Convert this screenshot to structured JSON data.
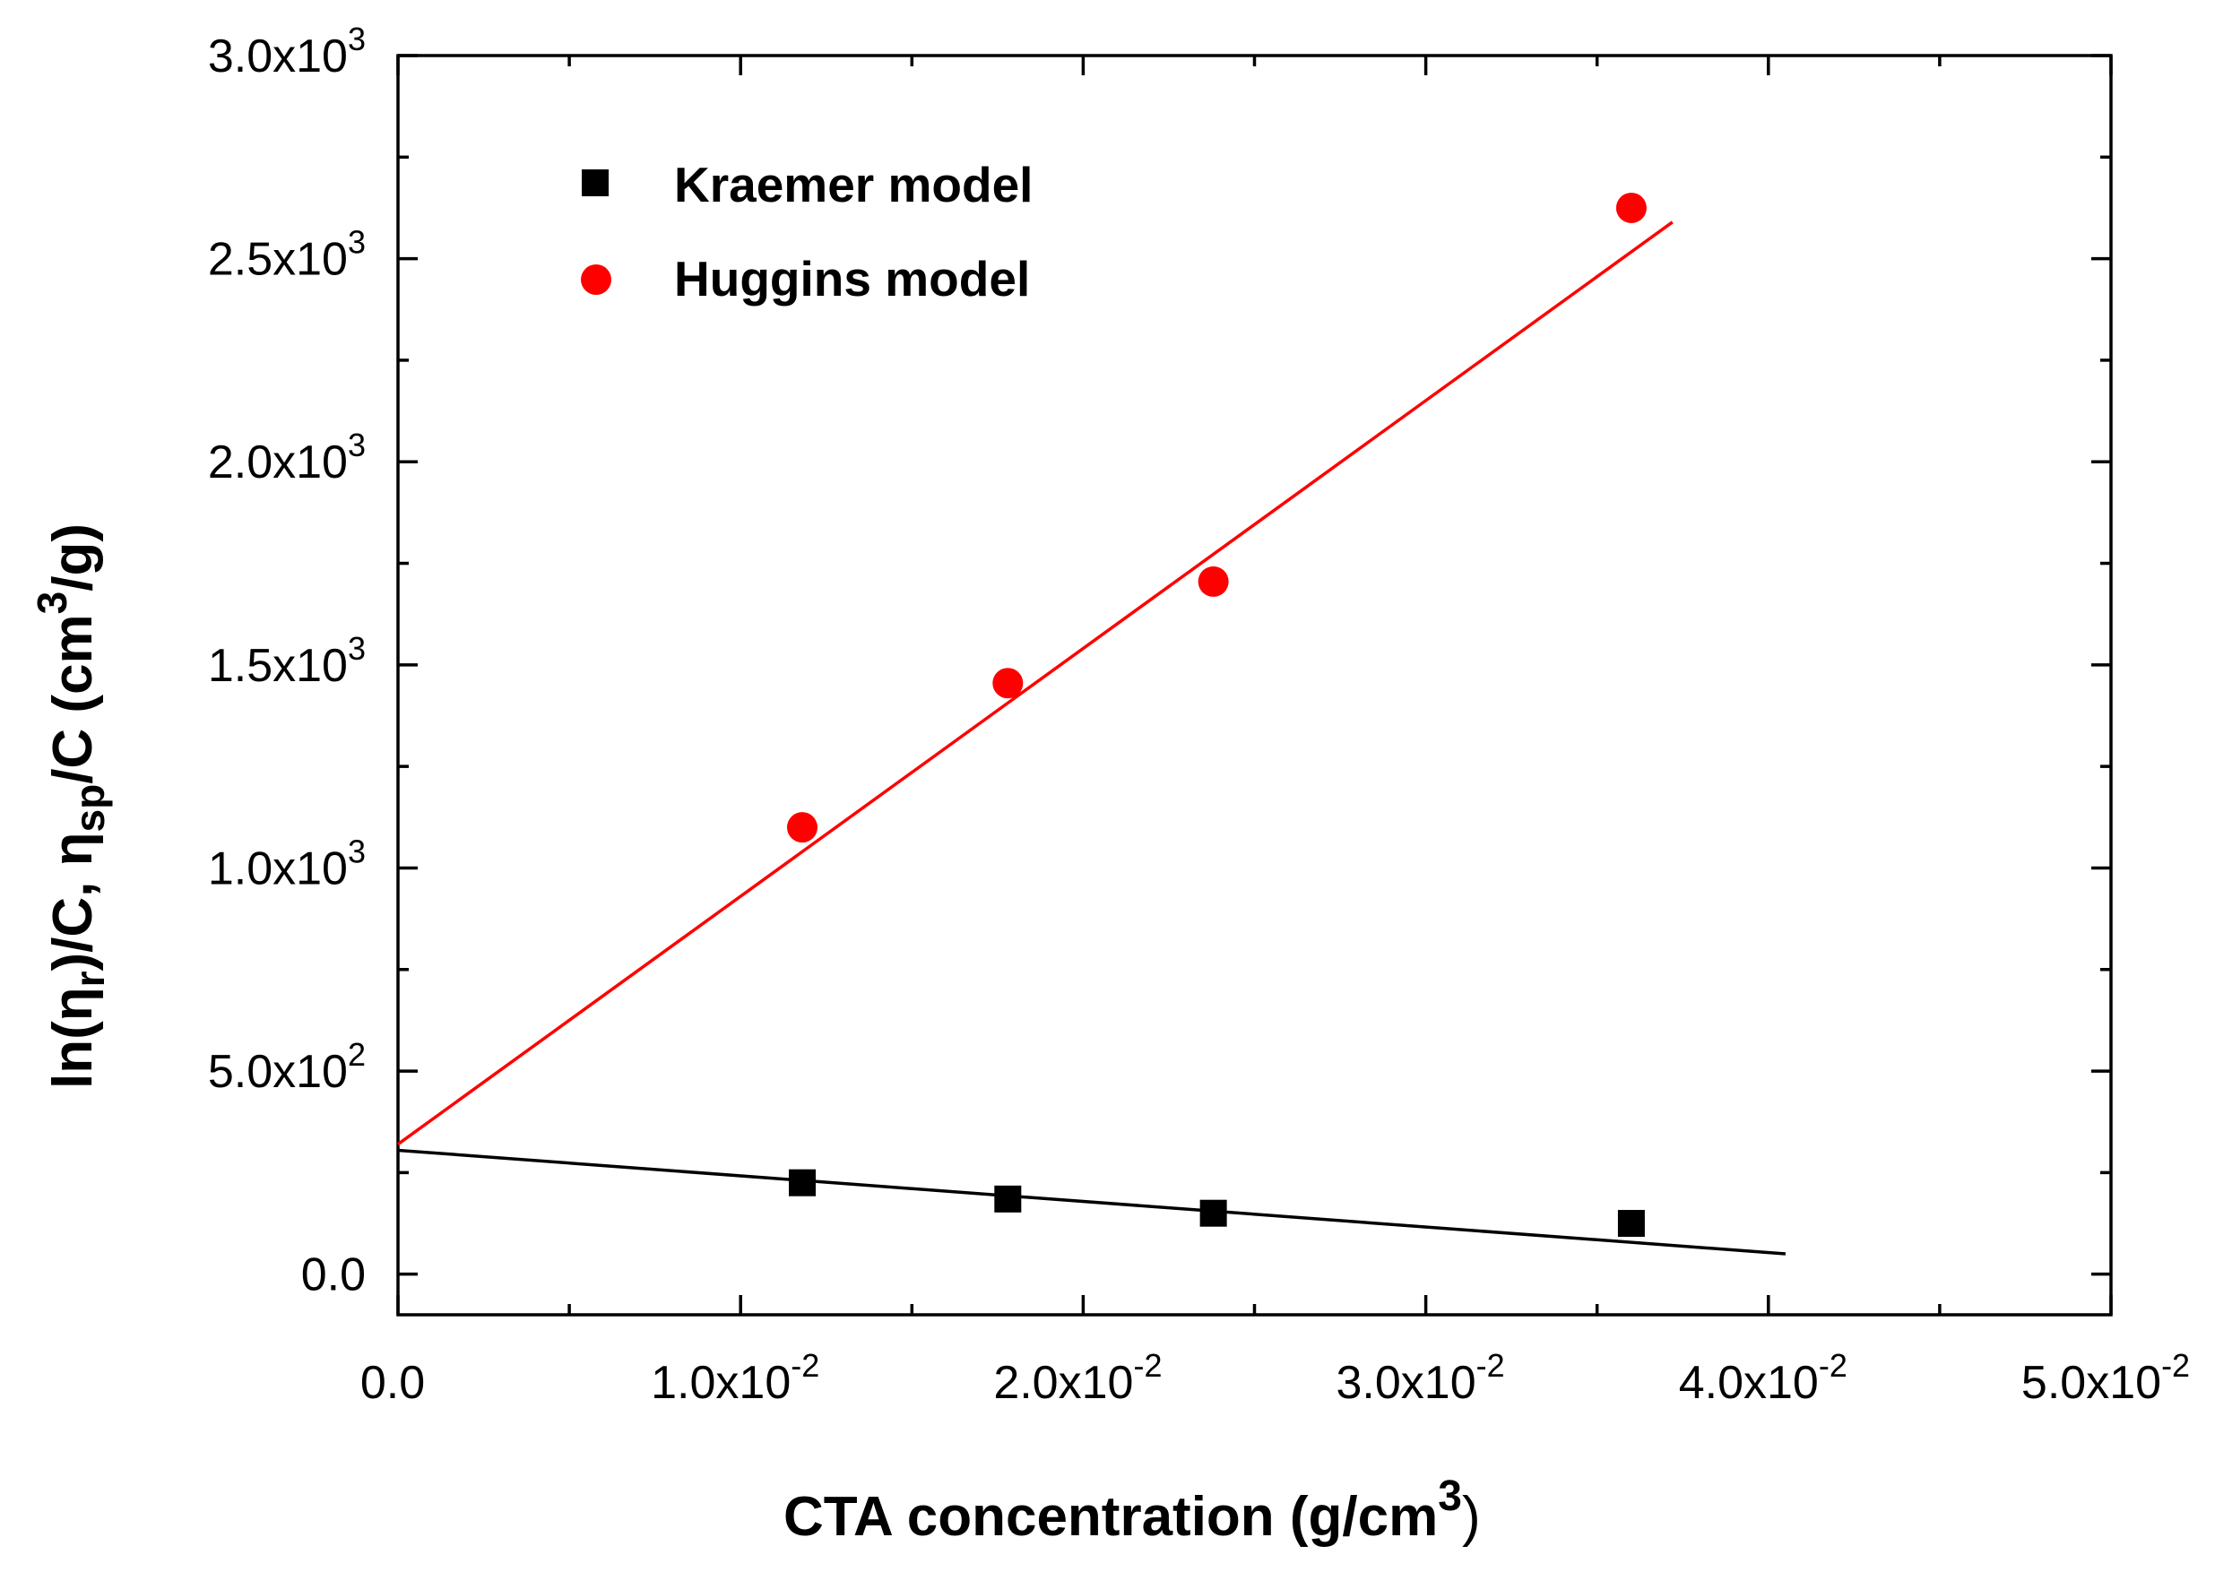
{
  "chart_data": {
    "type": "scatter",
    "title": "",
    "xlabel": "CTA concentration (g/cm",
    "xlabel_sup": "3",
    "xlabel_tail": ")",
    "ylabel": {
      "part1": "ln(η",
      "sub1": "r",
      "part2": ")/C, η",
      "sub2": "sp",
      "part3": "/C (cm",
      "sup": "3",
      "part4": "/g)"
    },
    "xlim": [
      0,
      0.05
    ],
    "ylim": [
      -100,
      3000
    ],
    "x_ticks": [
      {
        "value": 0.0,
        "mantissa": "0.0",
        "exp": ""
      },
      {
        "value": 0.01,
        "mantissa": "1.0x10",
        "exp": "-2"
      },
      {
        "value": 0.02,
        "mantissa": "2.0x10",
        "exp": "-2"
      },
      {
        "value": 0.03,
        "mantissa": "3.0x10",
        "exp": "-2"
      },
      {
        "value": 0.04,
        "mantissa": "4.0x10",
        "exp": "-2"
      },
      {
        "value": 0.05,
        "mantissa": "5.0x10",
        "exp": "-2"
      }
    ],
    "y_ticks": [
      {
        "value": 0,
        "mantissa": "0.0",
        "exp": ""
      },
      {
        "value": 500,
        "mantissa": "5.0x10",
        "exp": "2"
      },
      {
        "value": 1000,
        "mantissa": "1.0x10",
        "exp": "3"
      },
      {
        "value": 1500,
        "mantissa": "1.5x10",
        "exp": "3"
      },
      {
        "value": 2000,
        "mantissa": "2.0x10",
        "exp": "3"
      },
      {
        "value": 2500,
        "mantissa": "2.5x10",
        "exp": "3"
      },
      {
        "value": 3000,
        "mantissa": "3.0x10",
        "exp": "3"
      }
    ],
    "legend_position": "top-left",
    "series": [
      {
        "name": "Kraemer model",
        "marker": "square",
        "color": "#000000",
        "x": [
          0.0118,
          0.0178,
          0.0238,
          0.036
        ],
        "y": [
          225,
          185,
          150,
          125
        ],
        "fit": {
          "x": [
            0.0,
            0.0405
          ],
          "y": [
            305,
            50
          ]
        }
      },
      {
        "name": "Huggins model",
        "marker": "circle",
        "color": "#ff0000",
        "x": [
          0.0118,
          0.0178,
          0.0238,
          0.036
        ],
        "y": [
          1100,
          1455,
          1705,
          2625
        ],
        "fit": {
          "x": [
            0.0,
            0.0372
          ],
          "y": [
            320,
            2590
          ]
        }
      }
    ]
  }
}
